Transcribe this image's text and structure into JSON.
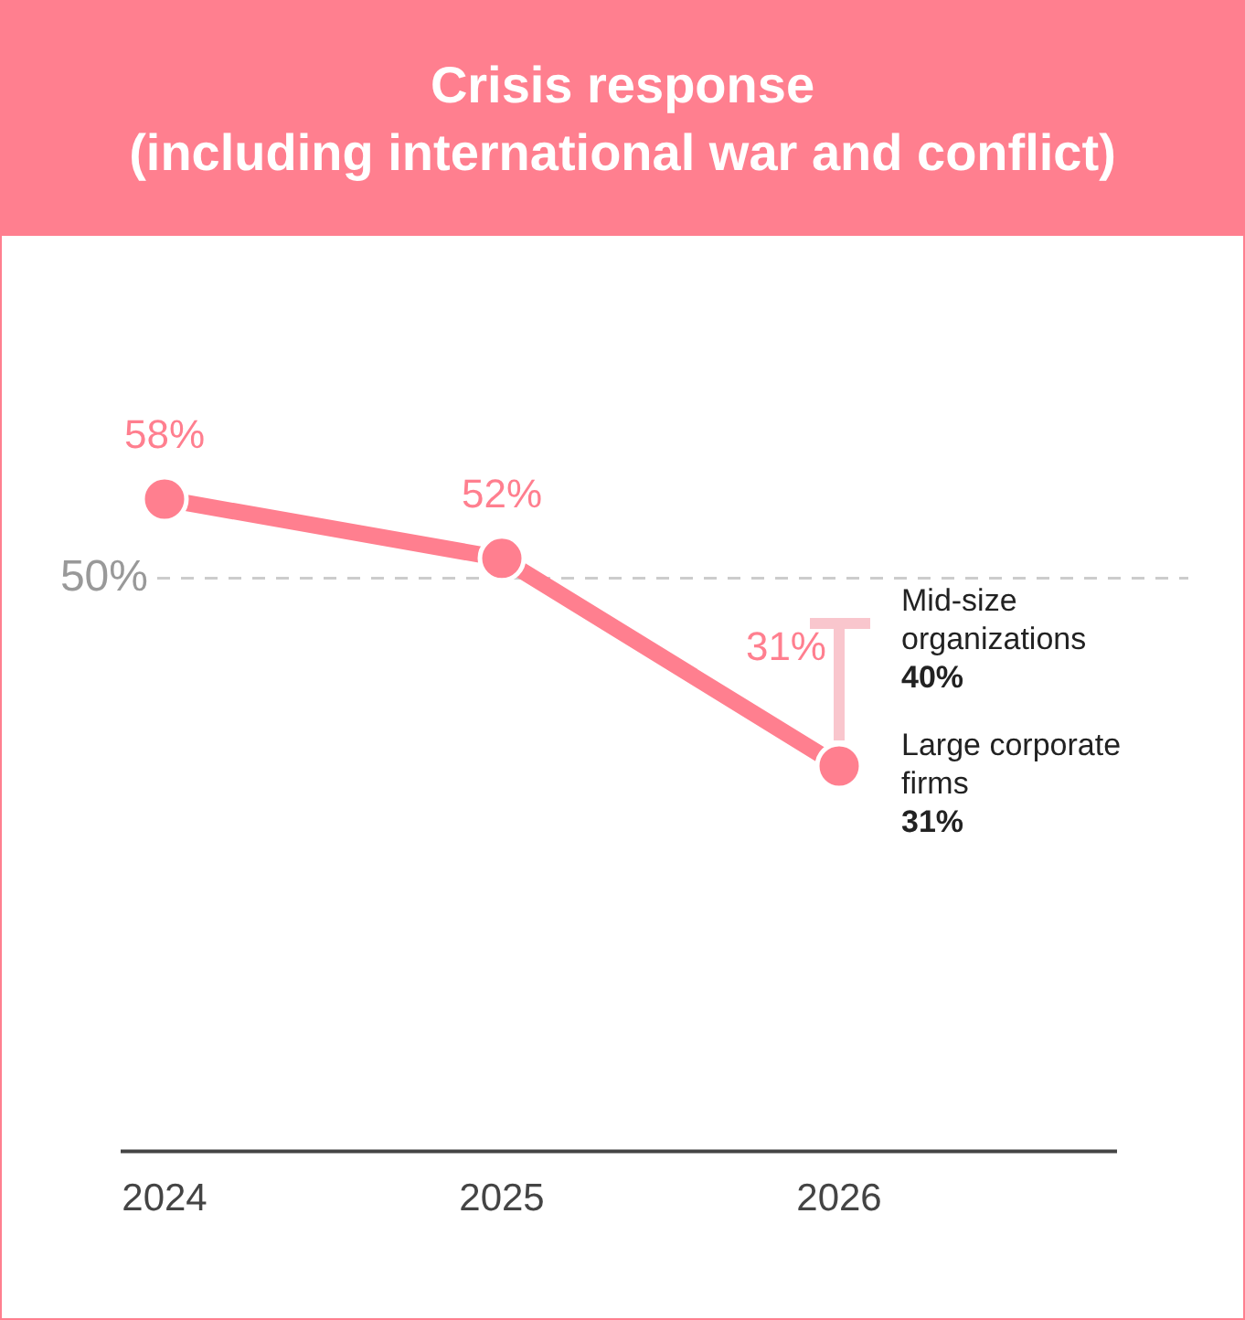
{
  "chart_data": {
    "type": "line",
    "title": "Crisis response\n(including international war and conflict)",
    "categories": [
      "2024",
      "2025",
      "2026"
    ],
    "series": [
      {
        "color": "#ff7f8f",
        "values": [
          58,
          52,
          31
        ],
        "value_labels": [
          "58%",
          "52%",
          "31%"
        ]
      }
    ],
    "tick_labels": "x",
    "marker": "circle",
    "line_style": "solid",
    "ref_lines": [
      {
        "axis": "y",
        "value": 50,
        "label": "50%",
        "color": "#cccccc",
        "line_style": "dashed"
      }
    ],
    "annotations": [
      "Mid-size organizations\n40%",
      {
        "text": "Large corporate firms\n31%",
        "x": "2026",
        "y": 31
      }
    ]
  }
}
